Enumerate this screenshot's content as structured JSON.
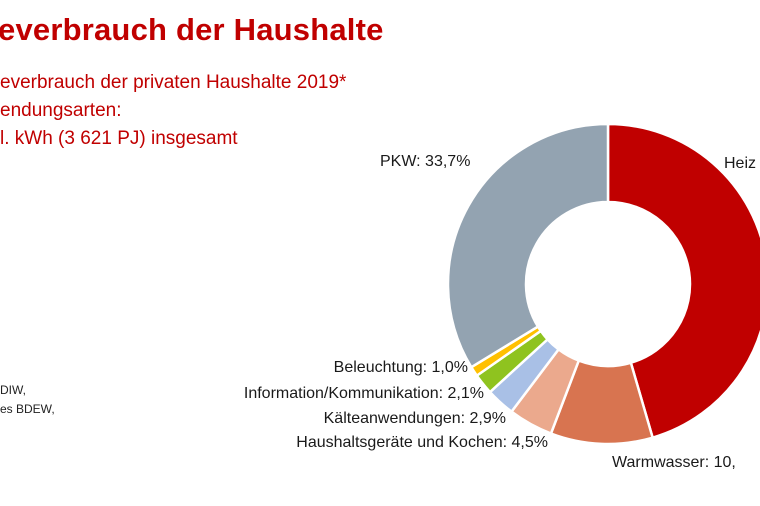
{
  "header": {
    "title": "everbrauch der Haushalte",
    "subtitle_line1": "everbrauch der privaten Haushalte 2019*",
    "subtitle_line2": "endungsarten:",
    "subtitle_line3": "l. kWh (3 621 PJ) insgesamt"
  },
  "source": {
    "line1": "DIW,",
    "line2": "es BDEW,"
  },
  "chart_data": {
    "type": "pie",
    "variant": "donut",
    "title": "everbrauch der privaten Haushalte 2019*",
    "slices": [
      {
        "name": "Heizen",
        "value": 45.5,
        "label": "Heiz",
        "color": "#c00000"
      },
      {
        "name": "Warmwasser",
        "value": 10.3,
        "label": "Warmwasser: 10,",
        "color": "#d87450"
      },
      {
        "name": "Haushaltsgeräte und Kochen",
        "value": 4.5,
        "label": "Haushaltsgeräte und Kochen: 4,5%",
        "color": "#eba98d"
      },
      {
        "name": "Kälteanwendungen",
        "value": 2.9,
        "label": "Kälteanwendungen: 2,9%",
        "color": "#a9c0e6"
      },
      {
        "name": "Information/Kommunikation",
        "value": 2.1,
        "label": "Information/Kommunikation: 2,1%",
        "color": "#8fc31f"
      },
      {
        "name": "Beleuchtung",
        "value": 1.0,
        "label": "Beleuchtung: 1,0%",
        "color": "#ffc000"
      },
      {
        "name": "PKW",
        "value": 33.7,
        "label": "PKW: 33,7%",
        "color": "#93a3b1"
      }
    ],
    "legend": "none"
  }
}
